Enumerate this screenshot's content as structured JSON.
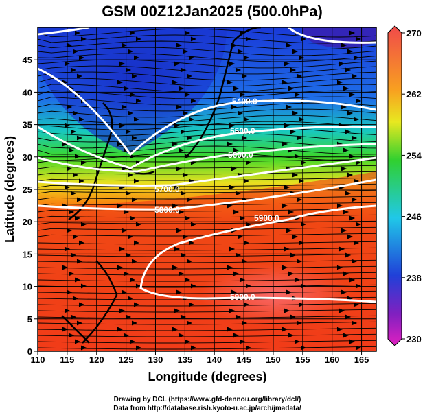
{
  "chart_data": {
    "type": "heatmap",
    "title": "GSM 00Z12Jan2025 (500.0hPa)",
    "xlabel": "Longitude (degrees)",
    "ylabel": "Latitude  (degrees)",
    "xlim": [
      110,
      167.5
    ],
    "ylim": [
      0,
      50
    ],
    "xticks": [
      110,
      115,
      120,
      125,
      130,
      135,
      140,
      145,
      150,
      155,
      160,
      165
    ],
    "yticks": [
      0,
      5,
      10,
      15,
      20,
      25,
      30,
      35,
      40,
      45
    ],
    "grid": true,
    "colorbar": {
      "ticks": [
        270,
        262,
        254,
        246,
        238,
        230
      ],
      "range": [
        230,
        270
      ],
      "position": "right"
    },
    "contours": [
      {
        "label": "5400.0",
        "value": 5400
      },
      {
        "label": "5500.0",
        "value": 5500
      },
      {
        "label": "5600.0",
        "value": 5600
      },
      {
        "label": "5700.0",
        "value": 5700
      },
      {
        "label": "5800.0",
        "value": 5800
      },
      {
        "label": "5900.0",
        "value": 5900
      },
      {
        "label": "5900.0",
        "value": 5900
      }
    ],
    "overlay": "streamlines"
  },
  "credits": {
    "line1": "Drawing by DCL (https://www.gfd-dennou.org/library/dcl/)",
    "line2": "Data from http://database.rish.kyoto-u.ac.jp/arch/jmadata/"
  }
}
